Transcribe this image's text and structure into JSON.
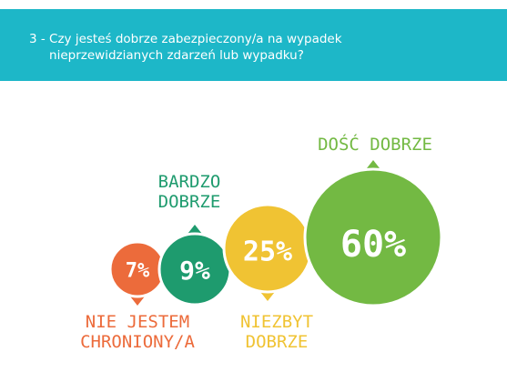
{
  "header": {
    "number": "3 - ",
    "question": "Czy jesteś dobrze zabezpieczony/a na wypadek nieprzewidzianych zdarzeń lub wypadku?",
    "background": "#1db7c8"
  },
  "chart_data": {
    "type": "bubble",
    "title": "",
    "xlabel": "",
    "ylabel": "",
    "categories": [
      "NIE JESTEM CHRONIONY/A",
      "BARDZO DOBRZE",
      "NIEZBYT DOBRZE",
      "DOŚĆ DOBRZE"
    ],
    "values": [
      7,
      9,
      25,
      60
    ],
    "value_labels": [
      "7%",
      "9%",
      "25%",
      "60%"
    ],
    "colors": [
      "#ec6b3b",
      "#1e9b6e",
      "#f0c333",
      "#73b943"
    ],
    "label_placement": [
      "below",
      "above",
      "below",
      "above"
    ]
  }
}
